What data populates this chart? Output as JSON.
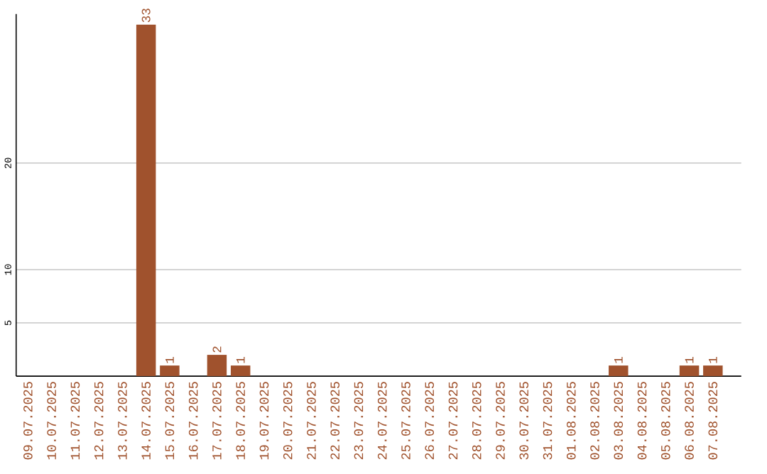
{
  "chart_data": {
    "type": "bar",
    "categories": [
      "09.07.2025",
      "10.07.2025",
      "11.07.2025",
      "12.07.2025",
      "13.07.2025",
      "14.07.2025",
      "15.07.2025",
      "16.07.2025",
      "17.07.2025",
      "18.07.2025",
      "19.07.2025",
      "20.07.2025",
      "21.07.2025",
      "22.07.2025",
      "23.07.2025",
      "24.07.2025",
      "25.07.2025",
      "26.07.2025",
      "27.07.2025",
      "28.07.2025",
      "29.07.2025",
      "30.07.2025",
      "31.07.2025",
      "01.08.2025",
      "02.08.2025",
      "03.08.2025",
      "04.08.2025",
      "05.08.2025",
      "06.08.2025",
      "07.08.2025"
    ],
    "values": [
      0,
      0,
      0,
      0,
      0,
      33,
      1,
      0,
      2,
      1,
      0,
      0,
      0,
      0,
      0,
      0,
      0,
      0,
      0,
      0,
      0,
      0,
      0,
      0,
      0,
      1,
      0,
      0,
      1,
      1
    ],
    "value_labels": [
      null,
      null,
      null,
      null,
      null,
      "33",
      "1",
      null,
      "2",
      "1",
      null,
      null,
      null,
      null,
      null,
      null,
      null,
      null,
      null,
      null,
      null,
      null,
      null,
      null,
      null,
      "1",
      null,
      null,
      "1",
      "1"
    ],
    "color": "#a0522d",
    "ylim": [
      0,
      34
    ],
    "yticks": [
      5,
      10,
      20
    ],
    "grid": "y"
  }
}
